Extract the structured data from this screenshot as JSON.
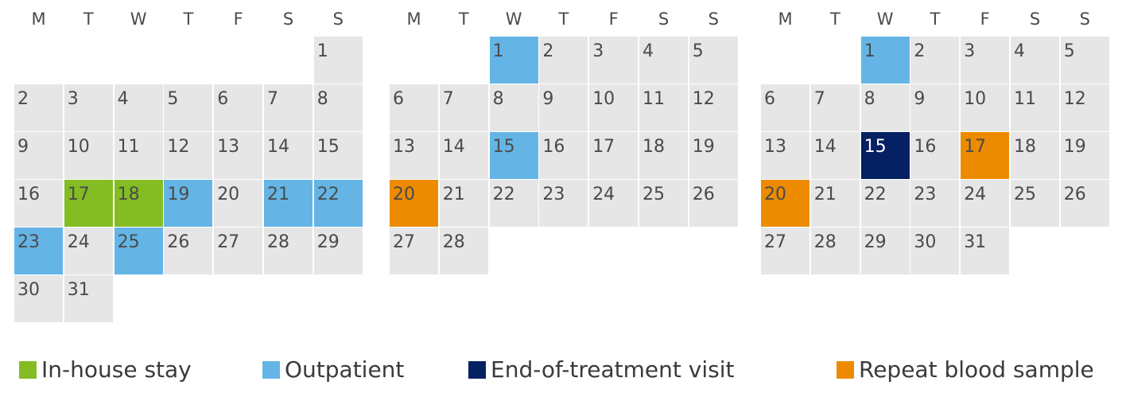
{
  "colors": {
    "default": "#e6e6e6",
    "in_house": "#84bc24",
    "outpatient": "#64b5e6",
    "end_of_treatment": "#052163",
    "blood_sample": "#ed8b00"
  },
  "weekdays": [
    "M",
    "T",
    "W",
    "T",
    "F",
    "S",
    "S"
  ],
  "months": [
    {
      "start_offset": 6,
      "days": 31,
      "marks": {
        "17": "in_house",
        "18": "in_house",
        "19": "outpatient",
        "21": "outpatient",
        "22": "outpatient",
        "23": "outpatient",
        "25": "outpatient"
      }
    },
    {
      "start_offset": 2,
      "days": 28,
      "marks": {
        "1": "outpatient",
        "15": "outpatient",
        "20": "blood_sample"
      }
    },
    {
      "start_offset": 2,
      "days": 31,
      "marks": {
        "1": "outpatient",
        "15": "end_of_treatment",
        "17": "blood_sample",
        "20": "blood_sample"
      }
    }
  ],
  "legend": [
    {
      "key": "in_house",
      "label": "In-house stay"
    },
    {
      "key": "outpatient",
      "label": "Outpatient"
    },
    {
      "key": "end_of_treatment",
      "label": "End-of-treatment visit"
    },
    {
      "key": "blood_sample",
      "label": "Repeat blood sample"
    }
  ]
}
